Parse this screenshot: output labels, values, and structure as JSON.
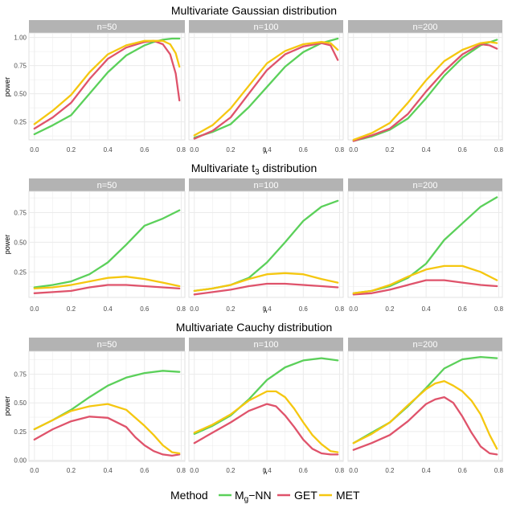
{
  "chart_data": [
    {
      "type": "line",
      "title": "Multivariate Gaussian distribution",
      "ylabel": "power",
      "xlabel": "λ",
      "xlim": [
        -0.03,
        0.82
      ],
      "ylim": [
        0.09,
        1.04
      ],
      "yticks": [
        0.25,
        0.5,
        0.75,
        1.0
      ],
      "ytick_labels": [
        "0.25",
        "0.50",
        "0.75",
        "1.00"
      ],
      "xticks": [
        0.0,
        0.2,
        0.4,
        0.6,
        0.8
      ],
      "xtick_labels": [
        "0.0",
        "0.2",
        "0.4",
        "0.6",
        "0.8"
      ],
      "panels": [
        {
          "label": "n=50",
          "series": [
            {
              "name": "Mg-NN",
              "x": [
                0,
                0.1,
                0.2,
                0.3,
                0.4,
                0.5,
                0.6,
                0.65,
                0.7,
                0.75,
                0.79
              ],
              "y": [
                0.14,
                0.22,
                0.31,
                0.5,
                0.69,
                0.84,
                0.93,
                0.96,
                0.98,
                0.99,
                0.99
              ]
            },
            {
              "name": "GET",
              "x": [
                0,
                0.1,
                0.2,
                0.3,
                0.4,
                0.5,
                0.6,
                0.65,
                0.7,
                0.74,
                0.77,
                0.79
              ],
              "y": [
                0.19,
                0.29,
                0.42,
                0.63,
                0.81,
                0.91,
                0.96,
                0.97,
                0.94,
                0.85,
                0.68,
                0.44
              ]
            },
            {
              "name": "MET",
              "x": [
                0,
                0.1,
                0.2,
                0.3,
                0.4,
                0.5,
                0.6,
                0.65,
                0.7,
                0.74,
                0.77,
                0.79
              ],
              "y": [
                0.23,
                0.35,
                0.49,
                0.69,
                0.85,
                0.93,
                0.97,
                0.97,
                0.97,
                0.94,
                0.86,
                0.74
              ]
            }
          ]
        },
        {
          "label": "n=100",
          "series": [
            {
              "name": "Mg-NN",
              "x": [
                0,
                0.1,
                0.2,
                0.3,
                0.4,
                0.5,
                0.6,
                0.7,
                0.79
              ],
              "y": [
                0.11,
                0.16,
                0.23,
                0.38,
                0.56,
                0.74,
                0.87,
                0.95,
                0.99
              ]
            },
            {
              "name": "GET",
              "x": [
                0,
                0.1,
                0.2,
                0.3,
                0.4,
                0.5,
                0.6,
                0.7,
                0.75,
                0.79
              ],
              "y": [
                0.1,
                0.17,
                0.29,
                0.5,
                0.71,
                0.85,
                0.92,
                0.95,
                0.93,
                0.8
              ]
            },
            {
              "name": "MET",
              "x": [
                0,
                0.1,
                0.2,
                0.3,
                0.4,
                0.5,
                0.6,
                0.7,
                0.75,
                0.79
              ],
              "y": [
                0.13,
                0.22,
                0.37,
                0.57,
                0.77,
                0.88,
                0.94,
                0.96,
                0.95,
                0.89
              ]
            }
          ]
        },
        {
          "label": "n=200",
          "series": [
            {
              "name": "Mg-NN",
              "x": [
                0,
                0.1,
                0.2,
                0.3,
                0.4,
                0.5,
                0.6,
                0.7,
                0.79
              ],
              "y": [
                0.08,
                0.12,
                0.18,
                0.28,
                0.46,
                0.66,
                0.82,
                0.93,
                0.98
              ]
            },
            {
              "name": "GET",
              "x": [
                0,
                0.1,
                0.2,
                0.3,
                0.4,
                0.5,
                0.6,
                0.7,
                0.75,
                0.79
              ],
              "y": [
                0.08,
                0.13,
                0.19,
                0.32,
                0.52,
                0.7,
                0.85,
                0.94,
                0.93,
                0.9
              ]
            },
            {
              "name": "MET",
              "x": [
                0,
                0.1,
                0.2,
                0.3,
                0.4,
                0.5,
                0.6,
                0.7,
                0.75,
                0.79
              ],
              "y": [
                0.09,
                0.15,
                0.24,
                0.42,
                0.62,
                0.79,
                0.89,
                0.95,
                0.96,
                0.95
              ]
            }
          ]
        }
      ]
    },
    {
      "type": "line",
      "title": "Multivariate t3 distribution",
      "title_main": "Multivariate t",
      "title_sub": "3",
      "title_tail": " distribution",
      "ylabel": "power",
      "xlabel": "λ",
      "xlim": [
        -0.03,
        0.82
      ],
      "ylim": [
        0.035,
        0.93
      ],
      "yticks": [
        0.25,
        0.5,
        0.75
      ],
      "ytick_labels": [
        "0.25",
        "0.50",
        "0.75"
      ],
      "xticks": [
        0.0,
        0.2,
        0.4,
        0.6,
        0.8
      ],
      "xtick_labels": [
        "0.0",
        "0.2",
        "0.4",
        "0.6",
        "0.8"
      ],
      "panels": [
        {
          "label": "n=50",
          "series": [
            {
              "name": "Mg-NN",
              "x": [
                0,
                0.1,
                0.2,
                0.3,
                0.4,
                0.5,
                0.6,
                0.7,
                0.79
              ],
              "y": [
                0.12,
                0.14,
                0.17,
                0.23,
                0.33,
                0.48,
                0.64,
                0.7,
                0.77
              ]
            },
            {
              "name": "GET",
              "x": [
                0,
                0.1,
                0.2,
                0.3,
                0.4,
                0.5,
                0.6,
                0.7,
                0.79
              ],
              "y": [
                0.07,
                0.08,
                0.09,
                0.12,
                0.14,
                0.14,
                0.13,
                0.12,
                0.11
              ]
            },
            {
              "name": "MET",
              "x": [
                0,
                0.1,
                0.2,
                0.3,
                0.4,
                0.5,
                0.6,
                0.7,
                0.79
              ],
              "y": [
                0.11,
                0.12,
                0.14,
                0.17,
                0.2,
                0.21,
                0.19,
                0.16,
                0.13
              ]
            }
          ]
        },
        {
          "label": "n=100",
          "series": [
            {
              "name": "Mg-NN",
              "x": [
                0,
                0.1,
                0.2,
                0.3,
                0.4,
                0.5,
                0.6,
                0.7,
                0.79
              ],
              "y": [
                0.09,
                0.11,
                0.14,
                0.2,
                0.33,
                0.5,
                0.68,
                0.8,
                0.85
              ]
            },
            {
              "name": "GET",
              "x": [
                0,
                0.1,
                0.2,
                0.3,
                0.4,
                0.5,
                0.6,
                0.7,
                0.79
              ],
              "y": [
                0.06,
                0.08,
                0.1,
                0.13,
                0.15,
                0.15,
                0.14,
                0.13,
                0.12
              ]
            },
            {
              "name": "MET",
              "x": [
                0,
                0.1,
                0.2,
                0.3,
                0.4,
                0.5,
                0.6,
                0.7,
                0.79
              ],
              "y": [
                0.09,
                0.11,
                0.14,
                0.19,
                0.23,
                0.24,
                0.23,
                0.19,
                0.16
              ]
            }
          ]
        },
        {
          "label": "n=200",
          "series": [
            {
              "name": "Mg-NN",
              "x": [
                0,
                0.1,
                0.2,
                0.3,
                0.4,
                0.5,
                0.6,
                0.7,
                0.79
              ],
              "y": [
                0.07,
                0.09,
                0.13,
                0.2,
                0.32,
                0.52,
                0.66,
                0.8,
                0.88
              ]
            },
            {
              "name": "GET",
              "x": [
                0,
                0.1,
                0.2,
                0.3,
                0.4,
                0.5,
                0.6,
                0.7,
                0.79
              ],
              "y": [
                0.06,
                0.07,
                0.1,
                0.14,
                0.18,
                0.18,
                0.16,
                0.14,
                0.13
              ]
            },
            {
              "name": "MET",
              "x": [
                0,
                0.1,
                0.2,
                0.3,
                0.4,
                0.5,
                0.6,
                0.7,
                0.79
              ],
              "y": [
                0.07,
                0.09,
                0.14,
                0.21,
                0.27,
                0.3,
                0.3,
                0.25,
                0.18
              ]
            }
          ]
        }
      ]
    },
    {
      "type": "line",
      "title": "Multivariate Cauchy distribution",
      "ylabel": "power",
      "xlabel": "λ",
      "xlim": [
        -0.03,
        0.82
      ],
      "ylim": [
        -0.01,
        0.95
      ],
      "yticks": [
        0.0,
        0.25,
        0.5,
        0.75
      ],
      "ytick_labels": [
        "0.00",
        "0.25",
        "0.50",
        "0.75"
      ],
      "xticks": [
        0.0,
        0.2,
        0.4,
        0.6,
        0.8
      ],
      "xtick_labels": [
        "0.0",
        "0.2",
        "0.4",
        "0.6",
        "0.8"
      ],
      "panels": [
        {
          "label": "n=50",
          "series": [
            {
              "name": "Mg-NN",
              "x": [
                0,
                0.1,
                0.2,
                0.3,
                0.4,
                0.5,
                0.6,
                0.7,
                0.79
              ],
              "y": [
                0.27,
                0.35,
                0.44,
                0.55,
                0.65,
                0.72,
                0.76,
                0.78,
                0.77
              ]
            },
            {
              "name": "GET",
              "x": [
                0,
                0.1,
                0.2,
                0.3,
                0.4,
                0.5,
                0.55,
                0.6,
                0.65,
                0.7,
                0.75,
                0.79
              ],
              "y": [
                0.18,
                0.27,
                0.34,
                0.38,
                0.37,
                0.29,
                0.2,
                0.13,
                0.08,
                0.05,
                0.04,
                0.05
              ]
            },
            {
              "name": "MET",
              "x": [
                0,
                0.1,
                0.2,
                0.3,
                0.4,
                0.5,
                0.55,
                0.6,
                0.65,
                0.7,
                0.75,
                0.79
              ],
              "y": [
                0.27,
                0.35,
                0.43,
                0.47,
                0.49,
                0.44,
                0.37,
                0.3,
                0.22,
                0.13,
                0.07,
                0.06
              ]
            }
          ]
        },
        {
          "label": "n=100",
          "series": [
            {
              "name": "Mg-NN",
              "x": [
                0,
                0.1,
                0.2,
                0.3,
                0.4,
                0.5,
                0.6,
                0.7,
                0.79
              ],
              "y": [
                0.23,
                0.3,
                0.39,
                0.53,
                0.7,
                0.81,
                0.87,
                0.89,
                0.87
              ]
            },
            {
              "name": "GET",
              "x": [
                0,
                0.1,
                0.2,
                0.3,
                0.4,
                0.45,
                0.5,
                0.55,
                0.6,
                0.65,
                0.7,
                0.75,
                0.79
              ],
              "y": [
                0.15,
                0.24,
                0.33,
                0.43,
                0.49,
                0.47,
                0.39,
                0.29,
                0.18,
                0.1,
                0.06,
                0.05,
                0.05
              ]
            },
            {
              "name": "MET",
              "x": [
                0,
                0.1,
                0.2,
                0.3,
                0.4,
                0.45,
                0.5,
                0.55,
                0.6,
                0.65,
                0.7,
                0.75,
                0.79
              ],
              "y": [
                0.24,
                0.31,
                0.4,
                0.52,
                0.6,
                0.6,
                0.55,
                0.45,
                0.33,
                0.22,
                0.14,
                0.08,
                0.07
              ]
            }
          ]
        },
        {
          "label": "n=200",
          "series": [
            {
              "name": "Mg-NN",
              "x": [
                0,
                0.1,
                0.2,
                0.3,
                0.4,
                0.5,
                0.6,
                0.7,
                0.79
              ],
              "y": [
                0.15,
                0.24,
                0.33,
                0.47,
                0.63,
                0.8,
                0.88,
                0.9,
                0.89
              ]
            },
            {
              "name": "GET",
              "x": [
                0,
                0.1,
                0.2,
                0.3,
                0.4,
                0.45,
                0.5,
                0.55,
                0.6,
                0.65,
                0.7,
                0.75,
                0.79
              ],
              "y": [
                0.09,
                0.15,
                0.22,
                0.34,
                0.49,
                0.53,
                0.55,
                0.5,
                0.38,
                0.24,
                0.12,
                0.06,
                0.05
              ]
            },
            {
              "name": "MET",
              "x": [
                0,
                0.1,
                0.2,
                0.3,
                0.4,
                0.45,
                0.5,
                0.55,
                0.6,
                0.65,
                0.7,
                0.75,
                0.79
              ],
              "y": [
                0.15,
                0.23,
                0.33,
                0.48,
                0.62,
                0.67,
                0.69,
                0.65,
                0.6,
                0.52,
                0.4,
                0.22,
                0.1
              ]
            }
          ]
        }
      ]
    }
  ],
  "legend": {
    "title": "Method",
    "entries": [
      {
        "key": "Mg-NN",
        "main": "M",
        "sub": "g",
        "tail": "−NN",
        "color": "#5bd05a"
      },
      {
        "key": "GET",
        "label": "GET",
        "color": "#df536b"
      },
      {
        "key": "MET",
        "label": "MET",
        "color": "#f5c710"
      }
    ]
  },
  "colors": {
    "strip_bg": "#b3b3b3",
    "grid": "#ebebeb",
    "panel_border": "#d9d9d9"
  }
}
